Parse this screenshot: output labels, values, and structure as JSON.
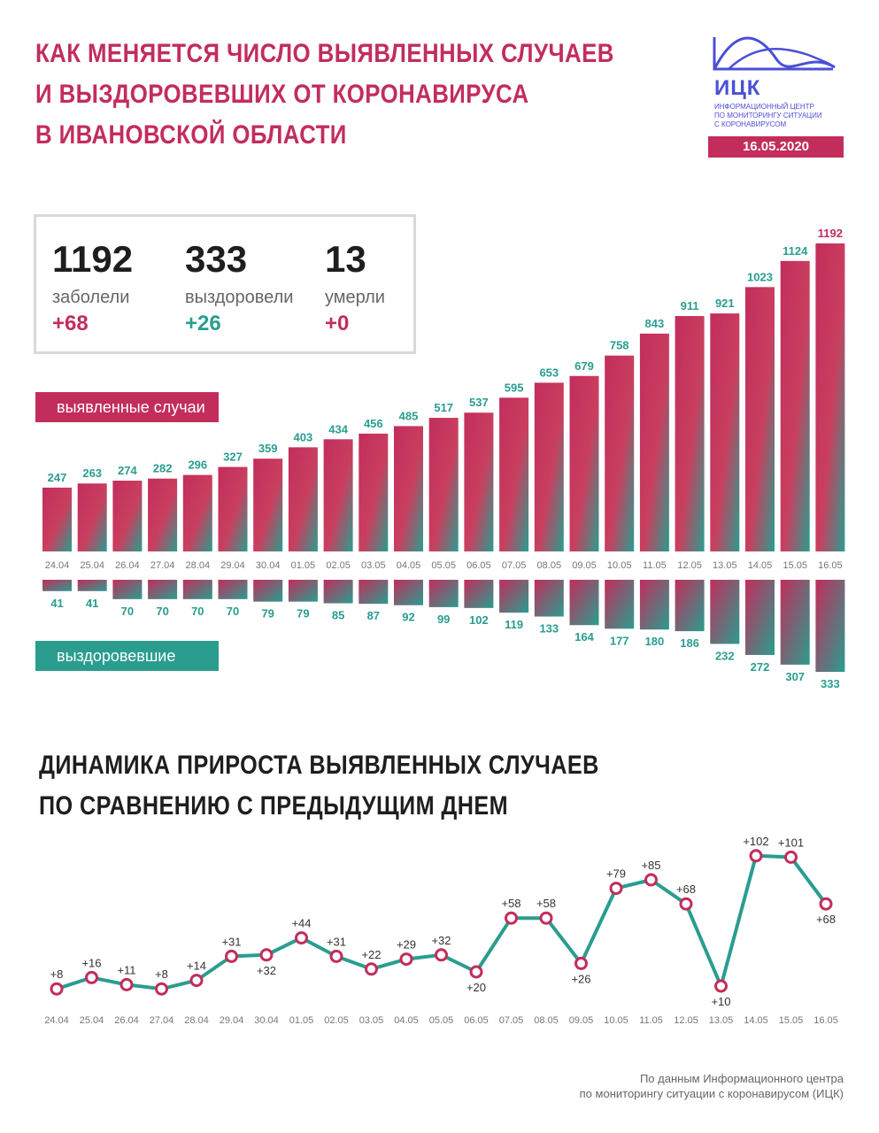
{
  "header": {
    "title_lines": [
      "КАК МЕНЯЕТСЯ ЧИСЛО ВЫЯВЛЕННЫХ СЛУЧАЕВ",
      "И ВЫЗДОРОВЕВШИХ ОТ КОРОНАВИРУСА",
      "В ИВАНОВСКОЙ ОБЛАСТИ"
    ],
    "logo_abbr": "ИЦК",
    "logo_sub": [
      "ИНФОРМАЦИОННЫЙ ЦЕНТР",
      "ПО МОНИТОРИНГУ СИТУАЦИИ",
      "С КОРОНАВИРУСОМ"
    ],
    "date": "16.05.2020"
  },
  "summary": {
    "infected": {
      "value": "1192",
      "label": "заболели",
      "delta": "+68"
    },
    "recovered": {
      "value": "333",
      "label": "выздоровели",
      "delta": "+26"
    },
    "died": {
      "value": "13",
      "label": "умерли",
      "delta": "+0"
    }
  },
  "labels": {
    "detected": "выявленные случаи",
    "recovered": "выздоровевшие"
  },
  "growth_title_lines": [
    "ДИНАМИКА ПРИРОСТА ВЫЯВЛЕННЫХ СЛУЧАЕВ",
    "ПО СРАВНЕНИЮ С ПРЕДЫДУЩИМ ДНЕМ"
  ],
  "footer_lines": [
    "По данным Информационного центра",
    "по мониторингу ситуации с коронавирусом (ИЦК)"
  ],
  "colors": {
    "pink": "#c22d5c",
    "green": "#2a9d8f",
    "text": "#1e1e1e"
  },
  "chart_data": [
    {
      "type": "bar",
      "title": "выявленные случаи",
      "categories": [
        "24.04",
        "25.04",
        "26.04",
        "27.04",
        "28.04",
        "29.04",
        "30.04",
        "01.05",
        "02.05",
        "03.05",
        "04.05",
        "05.05",
        "06.05",
        "07.05",
        "08.05",
        "09.05",
        "10.05",
        "11.05",
        "12.05",
        "13.05",
        "14.05",
        "15.05",
        "16.05"
      ],
      "series": [
        {
          "name": "выявленные случаи",
          "values": [
            247,
            263,
            274,
            282,
            296,
            327,
            359,
            403,
            434,
            456,
            485,
            517,
            537,
            595,
            653,
            679,
            758,
            843,
            911,
            921,
            1023,
            1124,
            1192
          ]
        },
        {
          "name": "выздоровевшие",
          "values": [
            41,
            41,
            70,
            70,
            70,
            70,
            79,
            79,
            85,
            87,
            92,
            99,
            102,
            119,
            133,
            164,
            177,
            180,
            186,
            232,
            272,
            307,
            333
          ]
        }
      ]
    },
    {
      "type": "line",
      "title": "ДИНАМИКА ПРИРОСТА ВЫЯВЛЕННЫХ СЛУЧАЕВ ПО СРАВНЕНИЮ С ПРЕДЫДУЩИМ ДНЕМ",
      "x": [
        "24.04",
        "25.04",
        "26.04",
        "27.04",
        "28.04",
        "29.04",
        "30.04",
        "01.05",
        "02.05",
        "03.05",
        "04.05",
        "05.05",
        "06.05",
        "07.05",
        "08.05",
        "09.05",
        "10.05",
        "11.05",
        "12.05",
        "13.05",
        "14.05",
        "15.05",
        "16.05"
      ],
      "values": [
        8,
        16,
        11,
        8,
        14,
        31,
        32,
        44,
        31,
        22,
        29,
        32,
        20,
        58,
        58,
        26,
        79,
        85,
        68,
        10,
        102,
        101,
        68
      ],
      "labels": [
        "+8",
        "+16",
        "+11",
        "+8",
        "+14",
        "+31",
        "+32",
        "+44",
        "+31",
        "+22",
        "+29",
        "+32",
        "+20",
        "+58",
        "+58",
        "+26",
        "+79",
        "+85",
        "+68",
        "+10",
        "+102",
        "+101",
        "+68"
      ]
    }
  ]
}
